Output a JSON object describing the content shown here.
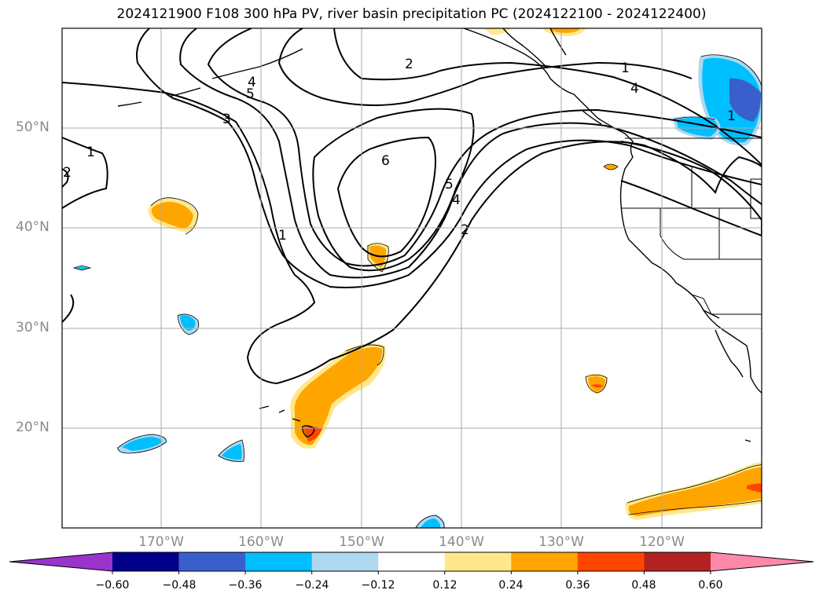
{
  "title": "2024121900 F108 300 hPa PV, river basin precipitation PC (2024122100 - 2024122400)",
  "lat_labels": [
    "50°N",
    "40°N",
    "30°N",
    "20°N"
  ],
  "lon_labels": [
    "170°W",
    "160°W",
    "150°W",
    "140°W",
    "130°W",
    "120°W"
  ],
  "contour_labels": [
    "1",
    "2",
    "3",
    "4",
    "5",
    "6",
    "1",
    "4",
    "5",
    "2",
    "2",
    "4",
    "1",
    "1"
  ],
  "colorbar": {
    "ticks": [
      "−0.60",
      "−0.48",
      "−0.36",
      "−0.24",
      "−0.12",
      "0.12",
      "0.24",
      "0.36",
      "0.48",
      "0.60"
    ],
    "colors": [
      "#9933cc",
      "#00008b",
      "#3a5fcd",
      "#00bfff",
      "#add8f0",
      "#ffffff",
      "#ffe88c",
      "#ffa500",
      "#ff4500",
      "#b22222",
      "#ff88aa"
    ]
  },
  "shading_colors": {
    "pos_light": "#ffe88c",
    "pos_mid": "#ffa500",
    "pos_high": "#ff4500",
    "neg_light": "#add8f0",
    "neg_mid": "#00bfff",
    "neg_high": "#3a5fcd"
  }
}
